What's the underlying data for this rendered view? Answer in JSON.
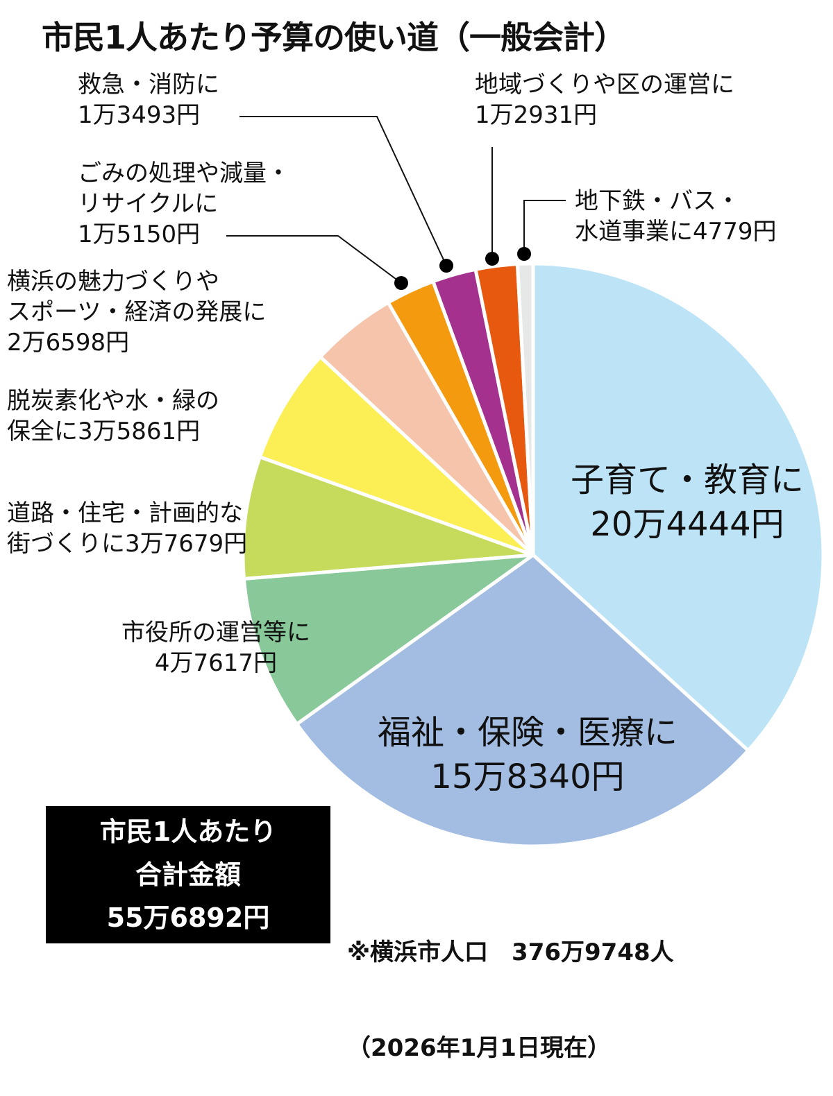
{
  "title": "市民1人あたり予算の使い道（一般会計）",
  "chart_data": {
    "type": "pie",
    "title": "市民1人あたり予算の使い道（一般会計）",
    "unit": "円",
    "start_angle_deg": 0,
    "direction": "clockwise",
    "categories": [
      "子育て・教育",
      "福祉・保険・医療",
      "市役所の運営等",
      "道路・住宅・計画的な街づくり",
      "脱炭素化や水・緑の保全",
      "横浜の魅力づくりやスポーツ・経済の発展",
      "ごみの処理や減量・リサイクル",
      "救急・消防",
      "地域づくりや区の運営",
      "地下鉄・バス・水道事業"
    ],
    "values": [
      204444,
      158340,
      47617,
      37679,
      35861,
      26598,
      15150,
      13493,
      12931,
      4779
    ],
    "colors": [
      "#bde3f7",
      "#a3bde2",
      "#88c899",
      "#c6da5c",
      "#fcef55",
      "#f6c4ab",
      "#f39a0f",
      "#a3318d",
      "#e85910",
      "#e6e7e7"
    ],
    "total": 556892,
    "legend": "none (direct labels)"
  },
  "labels": {
    "kyukyu": {
      "line1": "救急・消防に",
      "line2": "1万3493円"
    },
    "gomi": {
      "line1": "ごみの処理や減量・",
      "line2": "リサイクルに",
      "line3": "1万5150円"
    },
    "miryoku": {
      "line1": "横浜の魅力づくりや",
      "line2": "スポーツ・経済の発展に",
      "line3": "2万6598円"
    },
    "datsutanso": {
      "line1": "脱炭素化や水・緑の",
      "line2": "保全に3万5861円"
    },
    "doro": {
      "line1": "道路・住宅・計画的な",
      "line2": "街づくりに3万7679円"
    },
    "shiyakusho": {
      "line1": "市役所の運営等に",
      "line2": "4万7617円"
    },
    "chiiki": {
      "line1": "地域づくりや区の運営に",
      "line2": "1万2931円"
    },
    "chikatetsu": {
      "line1": "地下鉄・バス・",
      "line2": "水道事業に4779円"
    },
    "kosodate": {
      "line1": "子育て・教育に",
      "line2": "20万4444円"
    },
    "fukushi": {
      "line1": "福祉・保険・医療に",
      "line2": "15万8340円"
    }
  },
  "total_box": {
    "line1": "市民1人あたり",
    "line2": "合計金額",
    "line3": "55万6892円"
  },
  "note": {
    "line1": "※横浜市人口　376万9748人",
    "line2": "（2026年1月1日現在）"
  }
}
